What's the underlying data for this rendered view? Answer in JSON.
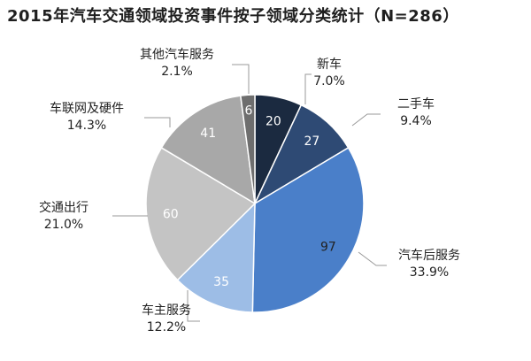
{
  "chart_data": {
    "type": "pie",
    "title": "2015年汽车交通领域投资事件按子领域分类统计（N=286）",
    "total": 286,
    "slices": [
      {
        "label": "新车",
        "value": 20,
        "percent": "7.0%",
        "color": "#1b2a40",
        "value_color": "#ffffff"
      },
      {
        "label": "二手车",
        "value": 27,
        "percent": "9.4%",
        "color": "#2e4a74",
        "value_color": "#ffffff"
      },
      {
        "label": "汽车后服务",
        "value": 97,
        "percent": "33.9%",
        "color": "#4a7fc9",
        "value_color": "#222222"
      },
      {
        "label": "车主服务",
        "value": 35,
        "percent": "12.2%",
        "color": "#9dbde6",
        "value_color": "#ffffff"
      },
      {
        "label": "交通出行",
        "value": 60,
        "percent": "21.0%",
        "color": "#c4c4c4",
        "value_color": "#ffffff"
      },
      {
        "label": "车联网及硬件",
        "value": 41,
        "percent": "14.3%",
        "color": "#a8a8a8",
        "value_color": "#ffffff"
      },
      {
        "label": "其他汽车服务",
        "value": 6,
        "percent": "2.1%",
        "color": "#6e6e6e",
        "value_color": "#ffffff"
      }
    ]
  }
}
